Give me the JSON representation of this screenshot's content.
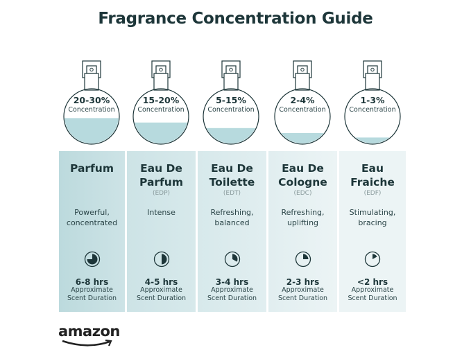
{
  "title": "Fragrance Concentration Guide",
  "colors": {
    "liquid": "#b7dade",
    "outline": "#1d3639",
    "panel_start": "#bcdadd",
    "panel_end": "#eef5f6"
  },
  "concentration_label": "Concentration",
  "duration_label_line1": "Approximate",
  "duration_label_line2": "Scent Duration",
  "types": [
    {
      "name_line1": "Parfum",
      "name_line2": "",
      "abbr": "",
      "concentration": "20-30%",
      "fill_level": 0.47,
      "desc_line1": "Powerful,",
      "desc_line2": "concentrated",
      "duration": "6-8 hrs",
      "clock_fraction": 0.75
    },
    {
      "name_line1": "Eau De",
      "name_line2": "Parfum",
      "abbr": "(EDP)",
      "concentration": "15-20%",
      "fill_level": 0.39,
      "desc_line1": "Intense",
      "desc_line2": "",
      "duration": "4-5 hrs",
      "clock_fraction": 0.5
    },
    {
      "name_line1": "Eau De",
      "name_line2": "Toilette",
      "abbr": "(EDT)",
      "concentration": "5-15%",
      "fill_level": 0.29,
      "desc_line1": "Refreshing,",
      "desc_line2": "balanced",
      "duration": "3-4 hrs",
      "clock_fraction": 0.33
    },
    {
      "name_line1": "Eau De",
      "name_line2": "Cologne",
      "abbr": "(EDC)",
      "concentration": "2-4%",
      "fill_level": 0.2,
      "desc_line1": "Refreshing,",
      "desc_line2": "uplifting",
      "duration": "2-3 hrs",
      "clock_fraction": 0.25
    },
    {
      "name_line1": "Eau",
      "name_line2": "Fraiche",
      "abbr": "(EDF)",
      "concentration": "1-3%",
      "fill_level": 0.12,
      "desc_line1": "Stimulating,",
      "desc_line2": "bracing",
      "duration": "<2 hrs",
      "clock_fraction": 0.17
    }
  ],
  "logo": "amazon"
}
